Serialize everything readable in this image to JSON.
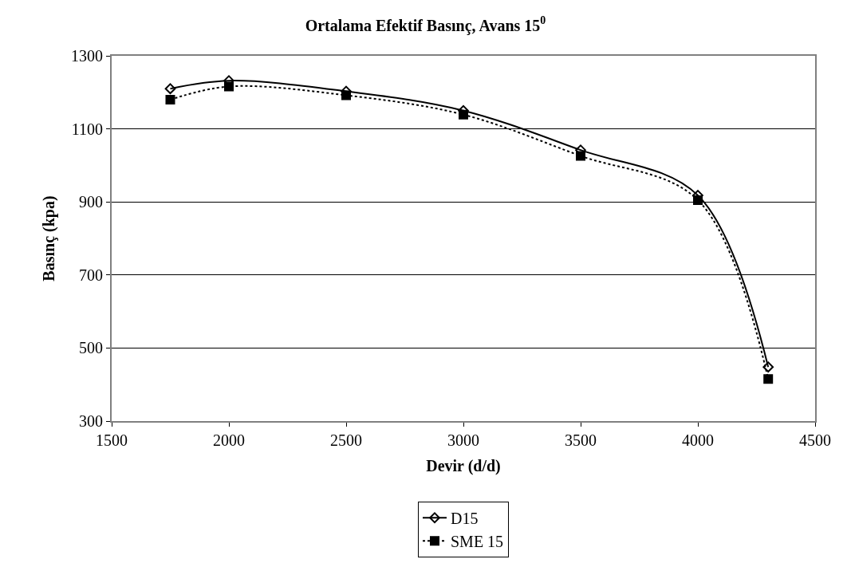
{
  "chart_data": {
    "type": "line",
    "title": "Ortalama Efektif Basınç, Avans 15$^{0}$",
    "xlabel": "Devir (d/d)",
    "ylabel": "Basınç (kpa)",
    "x": [
      1750,
      2000,
      2500,
      3000,
      3500,
      4000,
      4300
    ],
    "series": [
      {
        "name": "D15",
        "color": "#000000",
        "marker": "diamond",
        "line_style": "solid",
        "values": [
          1210,
          1232,
          1203,
          1150,
          1042,
          918,
          448
        ]
      },
      {
        "name": "SME 15",
        "color": "#000000",
        "marker": "square",
        "line_style": "dotted",
        "values": [
          1180,
          1216,
          1192,
          1139,
          1026,
          905,
          415
        ]
      }
    ],
    "xlim": [
      1500,
      4500
    ],
    "xticks": [
      1500,
      2000,
      2500,
      3000,
      3500,
      4000,
      4500
    ],
    "ylim": [
      300,
      1300
    ],
    "yticks": [
      300,
      500,
      700,
      900,
      1100,
      1300
    ],
    "grid": "y",
    "legend": "bottom"
  }
}
